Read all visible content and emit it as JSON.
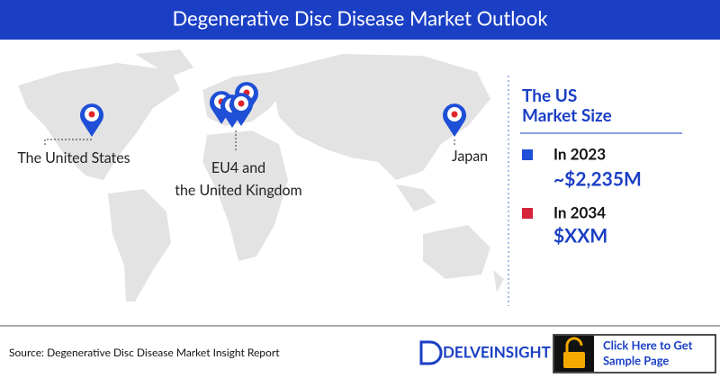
{
  "header": {
    "title": "Degenerative Disc Disease Market Outlook"
  },
  "map": {
    "labels": [
      {
        "lines": [
          "The United States"
        ]
      },
      {
        "lines": [
          "EU4 and",
          "the United Kingdom"
        ]
      },
      {
        "lines": [
          "Japan"
        ]
      }
    ]
  },
  "panel": {
    "heading": [
      "The US",
      "Market Size"
    ],
    "items": [
      {
        "year": "In 2023",
        "value": "~$2,235M"
      },
      {
        "year": "In 2034",
        "value": "$XXM"
      }
    ]
  },
  "footer": {
    "source": "Source: Degenerative Disc Disease Market Insight Report",
    "logo": "DELVEINSIGHT",
    "button": [
      "Click Here to Get",
      "Sample Page"
    ]
  }
}
